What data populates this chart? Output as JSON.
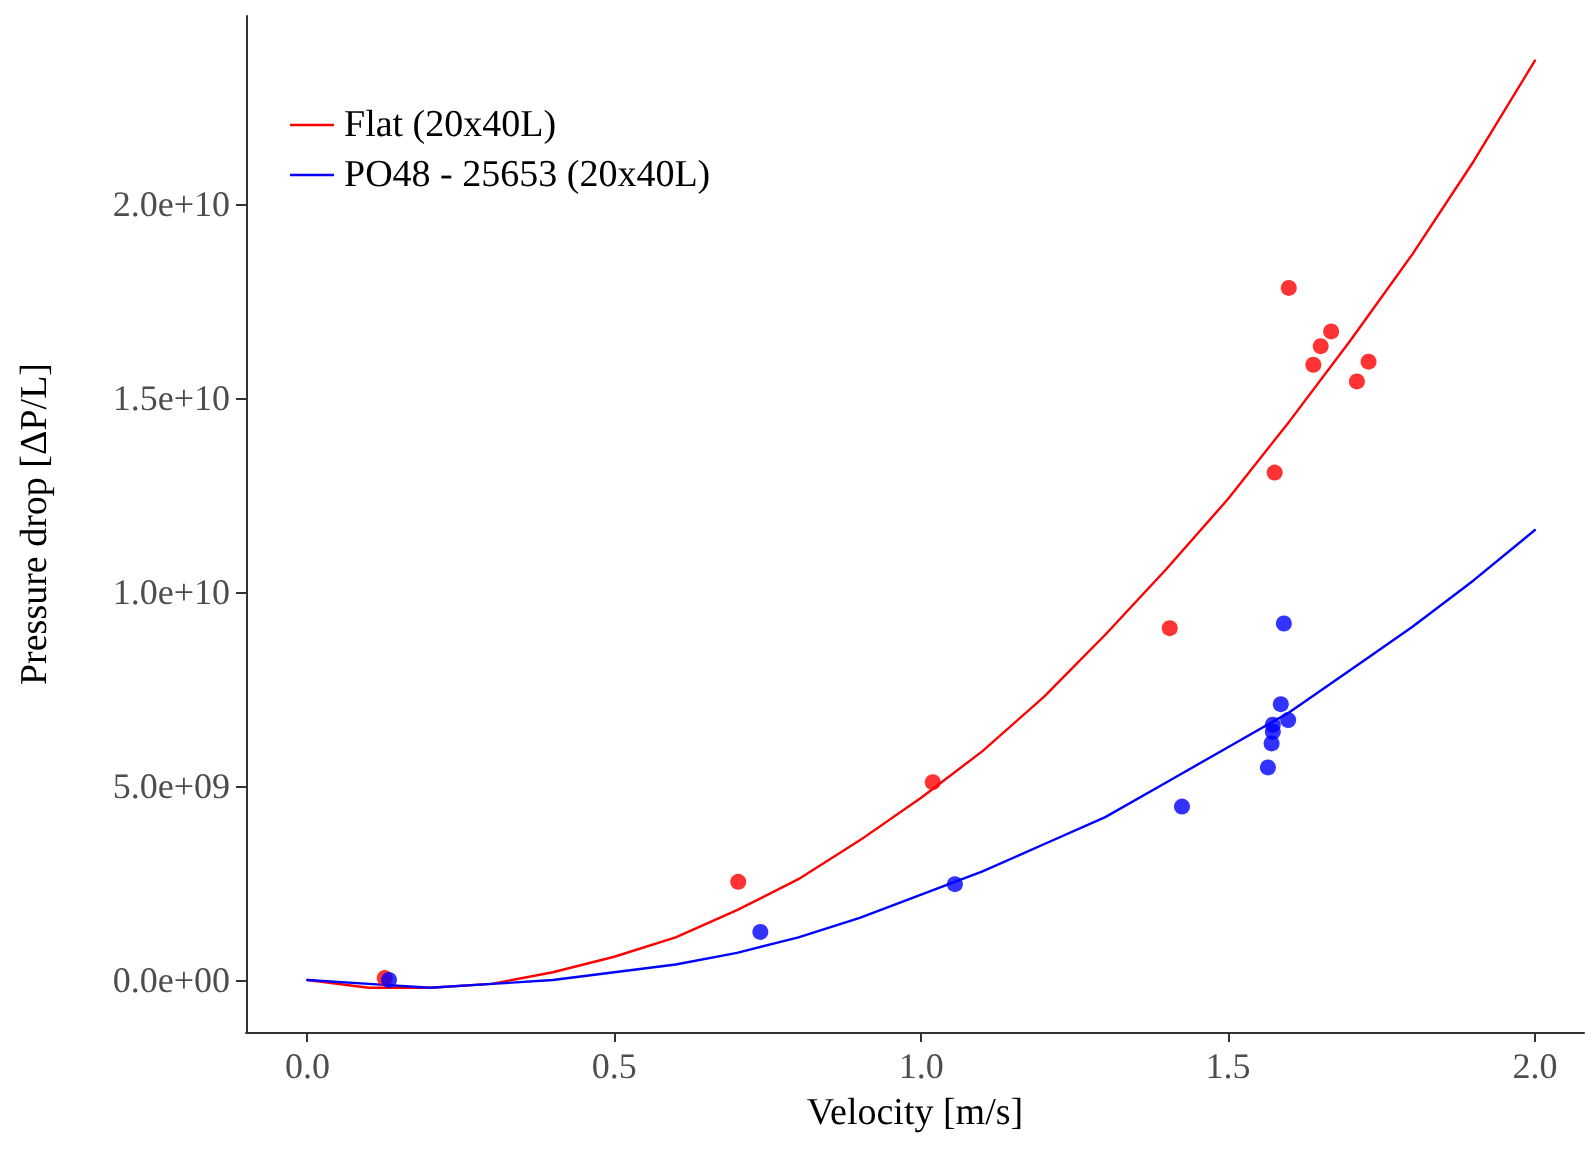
{
  "chart_data": {
    "type": "scatter",
    "xlabel": "Velocity [m/s]",
    "ylabel": "Pressure drop [ΔP/L]",
    "xlim": [
      -0.1,
      2.08
    ],
    "ylim": [
      -1340000000.0,
      24850000000.0
    ],
    "xticks": [
      {
        "value": 0,
        "label": "0.0"
      },
      {
        "value": 0.5,
        "label": "0.5"
      },
      {
        "value": 1,
        "label": "1.0"
      },
      {
        "value": 1.5,
        "label": "1.5"
      },
      {
        "value": 2,
        "label": "2.0"
      }
    ],
    "yticks": [
      {
        "value": 0,
        "label": "0.0e+00"
      },
      {
        "value": 5000000000.0,
        "label": "5.0e+09"
      },
      {
        "value": 10000000000.0,
        "label": "1.0e+10"
      },
      {
        "value": 15000000000.0,
        "label": "1.5e+10"
      },
      {
        "value": 20000000000.0,
        "label": "2.0e+10"
      }
    ],
    "grid": false,
    "legend": "top left",
    "marker": "circle",
    "series": [
      {
        "color": "#ff0000",
        "x": [
          0.126,
          0.702,
          1.019,
          1.405,
          1.599,
          1.668,
          1.651,
          1.639,
          1.729,
          1.71,
          1.576
        ],
        "values": [
          50000000.0,
          2530000000.0,
          5100000000.0,
          9070000000.0,
          17840000000.0,
          16720000000.0,
          16340000000.0,
          15860000000.0,
          15940000000.0,
          15430000000.0,
          13080000000.0
        ]
      },
      {
        "type": "line",
        "name": "Flat (20x40L)",
        "color": "#ff0000",
        "line_style": "solid",
        "marker": "none",
        "x": [
          0,
          0.1,
          0.2,
          0.3,
          0.4,
          0.5,
          0.6,
          0.7,
          0.8,
          0.9,
          1,
          1.1,
          1.2,
          1.3,
          1.4,
          1.5,
          1.6,
          1.7,
          1.8,
          1.9,
          2
        ],
        "values": [
          0,
          -200000000.0,
          -200000000.0,
          -100000000.0,
          200000000.0,
          600000000.0,
          1100000000.0,
          1800000000.0,
          2600000000.0,
          3600000000.0,
          4700000000.0,
          5900000000.0,
          7300000000.0,
          8900000000.0,
          10600000000.0,
          12400000000.0,
          14400000000.0,
          16500000000.0,
          18700000000.0,
          21100000000.0,
          23700000000.0
        ]
      },
      {
        "color": "#0000ff",
        "x": [
          0.133,
          0.738,
          1.055,
          1.425,
          1.565,
          1.571,
          1.573,
          1.573,
          1.598,
          1.586,
          1.591
        ],
        "values": [
          0,
          1240000000.0,
          2470000000.0,
          4470000000.0,
          5480000000.0,
          6100000000.0,
          6400000000.0,
          6580000000.0,
          6700000000.0,
          7110000000.0,
          9190000000.0
        ]
      },
      {
        "type": "line",
        "name": "PO48 - 25653 (20x40L)",
        "color": "#0000ff",
        "line_style": "solid",
        "marker": "none",
        "x": [
          0,
          0.1,
          0.2,
          0.3,
          0.4,
          0.5,
          0.6,
          0.7,
          0.8,
          0.9,
          1,
          1.1,
          1.2,
          1.3,
          1.4,
          1.5,
          1.6,
          1.7,
          1.8,
          1.9,
          2
        ],
        "values": [
          0,
          -100000000.0,
          -200000000.0,
          -100000000.0,
          0,
          200000000.0,
          400000000.0,
          700000000.0,
          1100000000.0,
          1600000000.0,
          2200000000.0,
          2800000000.0,
          3500000000.0,
          4200000000.0,
          5100000000.0,
          6000000000.0,
          6900000000.0,
          8000000000.0,
          9100000000.0,
          10300000000.0,
          11600000000.0
        ]
      }
    ]
  }
}
